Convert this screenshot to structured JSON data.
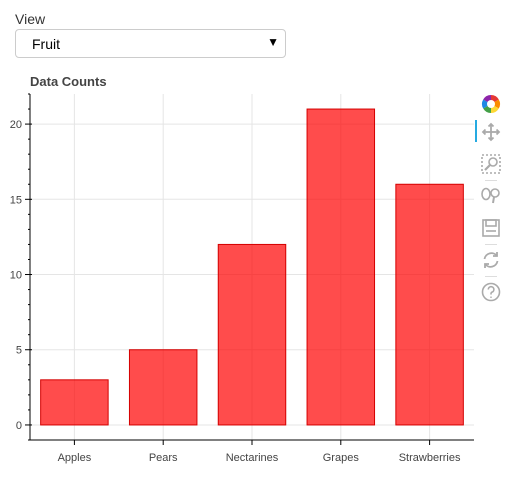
{
  "view": {
    "label": "View",
    "selected": "Fruit",
    "arrow": "▼"
  },
  "toolbar": {
    "tools": [
      "bokeh-logo-icon",
      "pan-icon",
      "box-zoom-icon",
      "wheel-zoom-icon",
      "save-icon",
      "reset-icon",
      "help-icon"
    ],
    "active_color": "#26aae1"
  },
  "chart_data": {
    "type": "bar",
    "title": "Data Counts",
    "categories": [
      "Apples",
      "Pears",
      "Nectarines",
      "Grapes",
      "Strawberries"
    ],
    "values": [
      3,
      5,
      12,
      21,
      16
    ],
    "ylim": [
      -1,
      22
    ],
    "yticks": [
      0,
      5,
      10,
      15,
      20
    ],
    "bar_color": "#ff0000",
    "grid": true
  }
}
